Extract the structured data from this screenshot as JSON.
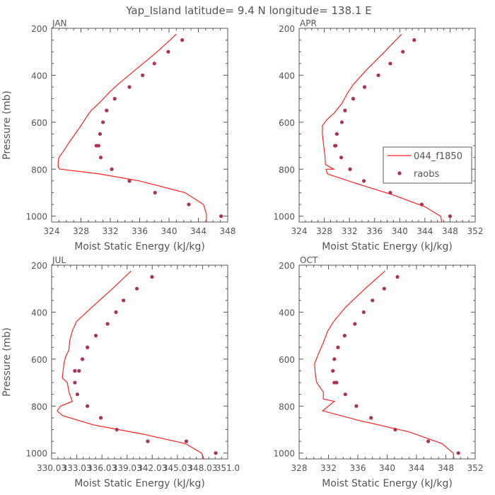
{
  "title": "Yap_Island  latitude= 9.4 N longitude= 138.1 E",
  "legend": {
    "model_label": "044_f1850",
    "obs_label": "raobs"
  },
  "colors": {
    "model": "#ff2020",
    "obs": "#b03050",
    "axis": "#555555"
  },
  "chart_data": [
    {
      "type": "line",
      "panel": "JAN",
      "xlabel": "Moist Static Energy (kJ/kg)",
      "ylabel": "Pressure (mb)",
      "xlim": [
        324,
        348
      ],
      "ylim": [
        1025,
        200
      ],
      "xticks": [
        "324",
        "328",
        "332",
        "336",
        "340",
        "344",
        "348"
      ],
      "yticks": [
        "200",
        "400",
        "600",
        "800",
        "1000"
      ],
      "model": {
        "name": "044_f1850",
        "x": [
          341.0,
          338.4,
          335.3,
          333.0,
          331.8,
          330.6,
          329.4,
          328.7,
          328.0,
          327.2,
          326.4,
          325.7,
          325.0,
          324.9,
          324.9,
          325.1,
          325.3,
          330.5,
          336.0,
          342.2,
          344.7,
          345.1,
          345.1
        ],
        "y": [
          225,
          300,
          380,
          440,
          475,
          515,
          550,
          580,
          615,
          650,
          685,
          720,
          750,
          770,
          790,
          800,
          800,
          820,
          850,
          900,
          950,
          990,
          1025
        ]
      },
      "obs": {
        "name": "raobs",
        "x": [
          341.8,
          339.9,
          338.0,
          336.4,
          334.6,
          332.6,
          331.5,
          331.0,
          330.6,
          330.4,
          330.1,
          330.7,
          332.2,
          334.6,
          338.1,
          342.7,
          347.1
        ],
        "y": [
          250,
          300,
          350,
          400,
          450,
          500,
          550,
          600,
          650,
          700,
          700,
          750,
          800,
          850,
          900,
          950,
          1000
        ]
      }
    },
    {
      "type": "line",
      "panel": "APR",
      "xlabel": "Moist Static Energy (kJ/kg)",
      "ylabel": "",
      "xlim": [
        324,
        352
      ],
      "ylim": [
        1025,
        200
      ],
      "xticks": [
        "324",
        "328",
        "332",
        "336",
        "340",
        "344",
        "348",
        "352"
      ],
      "yticks": [
        "200",
        "400",
        "600",
        "800",
        "1000"
      ],
      "show_legend": true,
      "model": {
        "name": "044_f1850",
        "x": [
          340.3,
          337.6,
          334.6,
          332.6,
          331.6,
          330.8,
          329.6,
          328.4,
          327.7,
          327.7,
          327.9,
          328.1,
          328.2,
          329.5,
          328.3,
          328.5,
          333.0,
          339.0,
          344.0,
          346.5,
          346.7
        ],
        "y": [
          225,
          300,
          380,
          440,
          480,
          520,
          560,
          590,
          615,
          650,
          700,
          740,
          780,
          800,
          800,
          820,
          860,
          910,
          960,
          1000,
          1025
        ]
      },
      "obs": {
        "name": "raobs",
        "x": [
          342.3,
          340.5,
          338.5,
          336.6,
          334.4,
          332.6,
          331.3,
          330.8,
          330.0,
          329.7,
          329.8,
          330.7,
          332.1,
          334.3,
          338.5,
          343.5,
          348.0
        ],
        "y": [
          250,
          300,
          350,
          400,
          450,
          500,
          550,
          600,
          650,
          700,
          700,
          750,
          800,
          850,
          900,
          950,
          1000
        ]
      }
    },
    {
      "type": "line",
      "panel": "JUL",
      "xlabel": "Moist Static Energy (kJ/kg)",
      "ylabel": "Pressure (mb)",
      "xlim": [
        330.03,
        351.03
      ],
      "ylim": [
        1025,
        200
      ],
      "xticks": [
        "330.03",
        "333.03",
        "336.03",
        "339.03",
        "342.03",
        "345.03",
        "348.03",
        "351.0"
      ],
      "yticks": [
        "200",
        "400",
        "600",
        "800",
        "1000"
      ],
      "model": {
        "name": "044_f1850",
        "x": [
          339.5,
          337.3,
          334.8,
          333.0,
          332.5,
          332.2,
          332.1,
          331.7,
          331.5,
          331.3,
          331.9,
          332.1,
          332.5,
          331.1,
          330.7,
          331.3,
          335.0,
          341.0,
          346.0,
          347.9,
          348.2
        ],
        "y": [
          225,
          300,
          380,
          440,
          480,
          520,
          560,
          590,
          620,
          680,
          700,
          740,
          780,
          800,
          820,
          840,
          880,
          920,
          960,
          1000,
          1025
        ]
      },
      "obs": {
        "name": "raobs",
        "x": [
          342.0,
          340.2,
          338.6,
          337.7,
          336.7,
          335.3,
          334.3,
          333.7,
          333.3,
          332.8,
          332.8,
          333.1,
          334.3,
          335.9,
          337.8,
          341.5,
          346.1,
          349.6
        ],
        "y": [
          250,
          300,
          350,
          400,
          450,
          500,
          550,
          600,
          650,
          650,
          700,
          750,
          800,
          850,
          900,
          950,
          950,
          1000
        ]
      }
    },
    {
      "type": "line",
      "panel": "OCT",
      "xlabel": "Moist Static Energy (kJ/kg)",
      "ylabel": "",
      "xlim": [
        328,
        352
      ],
      "ylim": [
        1025,
        200
      ],
      "xticks": [
        "328",
        "332",
        "336",
        "340",
        "344",
        "348",
        "352"
      ],
      "yticks": [
        "200",
        "400",
        "600",
        "800",
        "1000"
      ],
      "model": {
        "name": "044_f1850",
        "x": [
          339.7,
          337.0,
          334.3,
          332.7,
          331.9,
          331.3,
          330.6,
          330.1,
          330.2,
          330.4,
          331.3,
          331.3,
          332.8,
          332.0,
          331.2,
          336.0,
          343.0,
          347.5,
          349.0,
          349.1
        ],
        "y": [
          225,
          300,
          380,
          440,
          480,
          530,
          580,
          620,
          660,
          700,
          740,
          770,
          780,
          800,
          820,
          860,
          910,
          960,
          1000,
          1025
        ]
      },
      "obs": {
        "name": "raobs",
        "x": [
          341.4,
          339.6,
          338.0,
          336.8,
          335.6,
          334.2,
          333.3,
          332.8,
          332.6,
          332.8,
          333.1,
          334.3,
          335.8,
          337.8,
          341.1,
          345.6,
          349.7
        ],
        "y": [
          250,
          300,
          350,
          400,
          450,
          500,
          550,
          600,
          650,
          700,
          700,
          750,
          800,
          850,
          900,
          950,
          1000
        ]
      }
    }
  ]
}
